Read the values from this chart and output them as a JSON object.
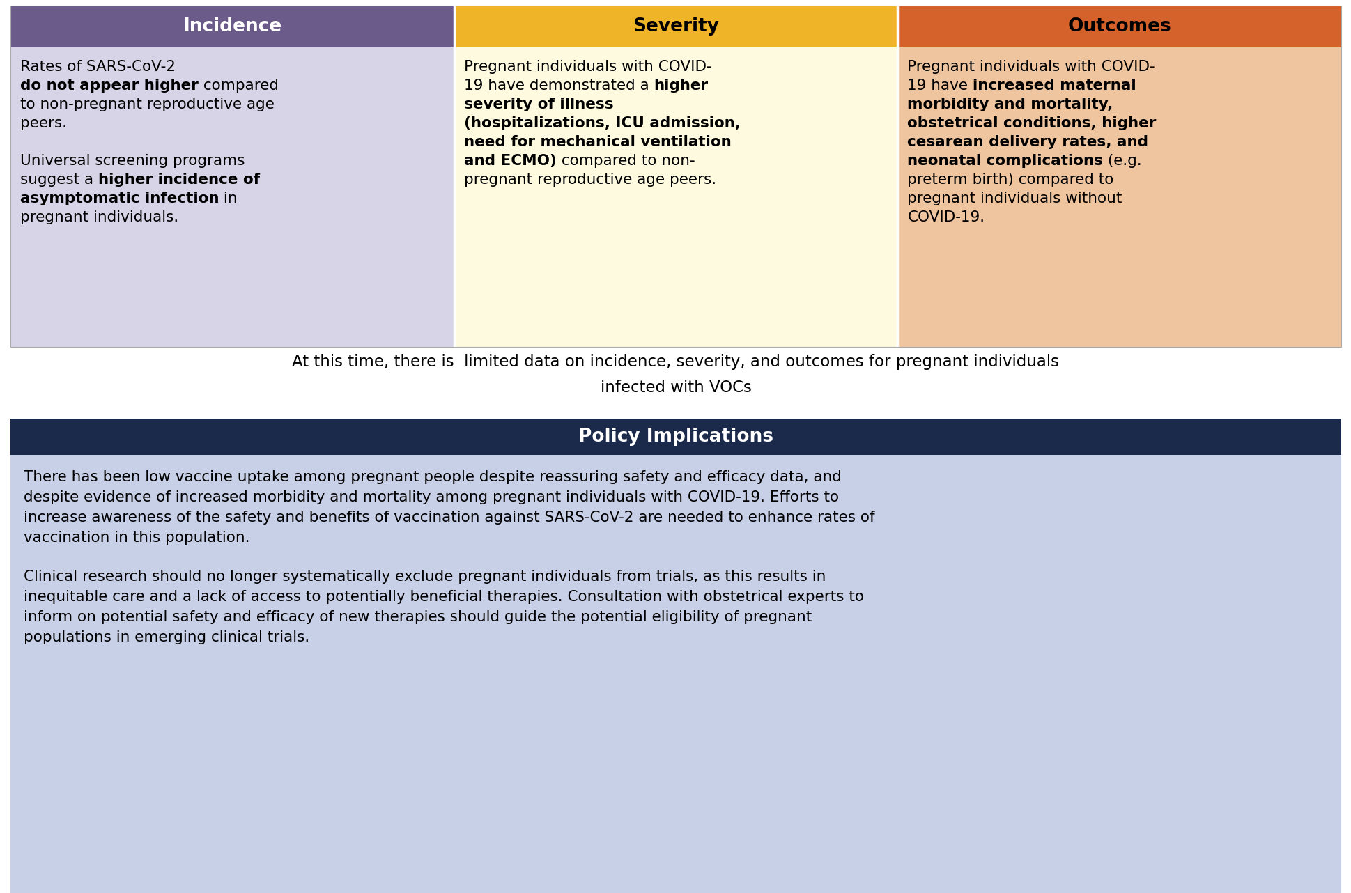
{
  "header_colors": {
    "incidence": "#6B5B8B",
    "severity": "#F0B429",
    "outcomes": "#D4622A"
  },
  "body_colors": {
    "incidence": "#D8D4E8",
    "severity": "#FEFAE0",
    "outcomes": "#EFC5A0"
  },
  "policy_header_color": "#1B2A4A",
  "policy_body_color": "#C8D0E8",
  "header_text_color_incidence": "#FFFFFF",
  "header_text_color_severity": "#000000",
  "header_text_color_outcomes": "#000000",
  "incidence_text": [
    {
      "text": "Rates of SARS-CoV-2\n",
      "bold": false
    },
    {
      "text": "do not appear higher",
      "bold": true
    },
    {
      "text": " compared\nto non-pregnant reproductive age\npeers.",
      "bold": false
    },
    {
      "text": "\n\nUniversal screening programs\nsuggest a ",
      "bold": false
    },
    {
      "text": "higher incidence of\nasymptomatic infection",
      "bold": true
    },
    {
      "text": " in\npregnant individuals.",
      "bold": false
    }
  ],
  "severity_text": [
    {
      "text": "Pregnant individuals with COVID-\n19 have demonstrated a ",
      "bold": false
    },
    {
      "text": "higher\nseverity of illness\n(hospitalizations, ICU admission,\nneed for mechanical ventilation\nand ECMO)",
      "bold": true
    },
    {
      "text": " compared to non-\npregnant reproductive age peers.",
      "bold": false
    }
  ],
  "outcomes_text": [
    {
      "text": "Pregnant individuals with COVID-\n19 have ",
      "bold": false
    },
    {
      "text": "increased maternal\nmorbidity and mortality,\nobstetrical conditions, higher\ncesarean delivery rates, and\nneonatal complications",
      "bold": true
    },
    {
      "text": " (e.g.\npreterm birth) compared to\npregnant individuals without\nCOVID-19.",
      "bold": false
    }
  ],
  "voc_text": "At this time, there is  limited data on incidence, severity, and outcomes for pregnant individuals\ninfected with VOCs",
  "policy_header": "Policy Implications",
  "policy_text1": [
    {
      "text": "There has been low vaccine uptake among pregnant people despite reassuring safety and efficacy data, and\ndespite evidence of increased morbidity and mortality among pregnant individuals with COVID-19. Efforts to\nincrease awareness of the safety and benefits of vaccination against SARS-CoV-2 are needed to enhance rates of\nvaccination in this population.",
      "bold": false
    }
  ],
  "policy_text2": [
    {
      "text": "Clinical research should no longer systematically exclude pregnant individuals from trials, as this results in\ninequitable care and a lack of access to potentially beneficial therapies. Consultation with obstetrical experts to\ninform on potential safety and efficacy of new therapies should guide the potential eligibility of pregnant\npopulations in emerging clinical trials.",
      "bold": false
    }
  ],
  "figwidth": 19.4,
  "figheight": 12.82,
  "dpi": 100
}
